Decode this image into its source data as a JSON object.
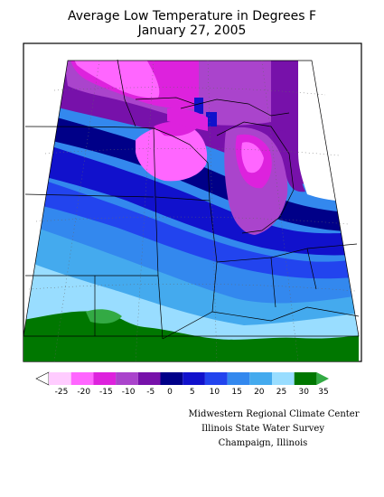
{
  "title": {
    "line1": "Average Low Temperature in Degrees F",
    "line2": "January 27, 2005"
  },
  "legend": {
    "ticks": [
      "-25",
      "-20",
      "-15",
      "-10",
      "-5",
      "0",
      "5",
      "10",
      "15",
      "20",
      "25",
      "30",
      "35"
    ],
    "bins": [
      {
        "label": "below -25",
        "color": "#ffffff"
      },
      {
        "label": "-25 to -20",
        "color": "#ffccff"
      },
      {
        "label": "-20 to -15",
        "color": "#ff66ff"
      },
      {
        "label": "-15 to -10",
        "color": "#dd22dd"
      },
      {
        "label": "-10 to -5",
        "color": "#aa44cc"
      },
      {
        "label": "-5 to 0",
        "color": "#7711aa"
      },
      {
        "label": "0 to 5",
        "color": "#000088"
      },
      {
        "label": "5 to 10",
        "color": "#1111cc"
      },
      {
        "label": "10 to 15",
        "color": "#2244ee"
      },
      {
        "label": "15 to 20",
        "color": "#3388ee"
      },
      {
        "label": "20 to 25",
        "color": "#44aaee"
      },
      {
        "label": "25 to 30",
        "color": "#99ddff"
      },
      {
        "label": "30 to 35",
        "color": "#007700"
      },
      {
        "label": "above 35",
        "color": "#33aa44"
      }
    ]
  },
  "credits": {
    "line1": "Midwestern Regional Climate Center",
    "line2": "Illinois State Water Survey",
    "line3": "Champaign, Illinois"
  }
}
